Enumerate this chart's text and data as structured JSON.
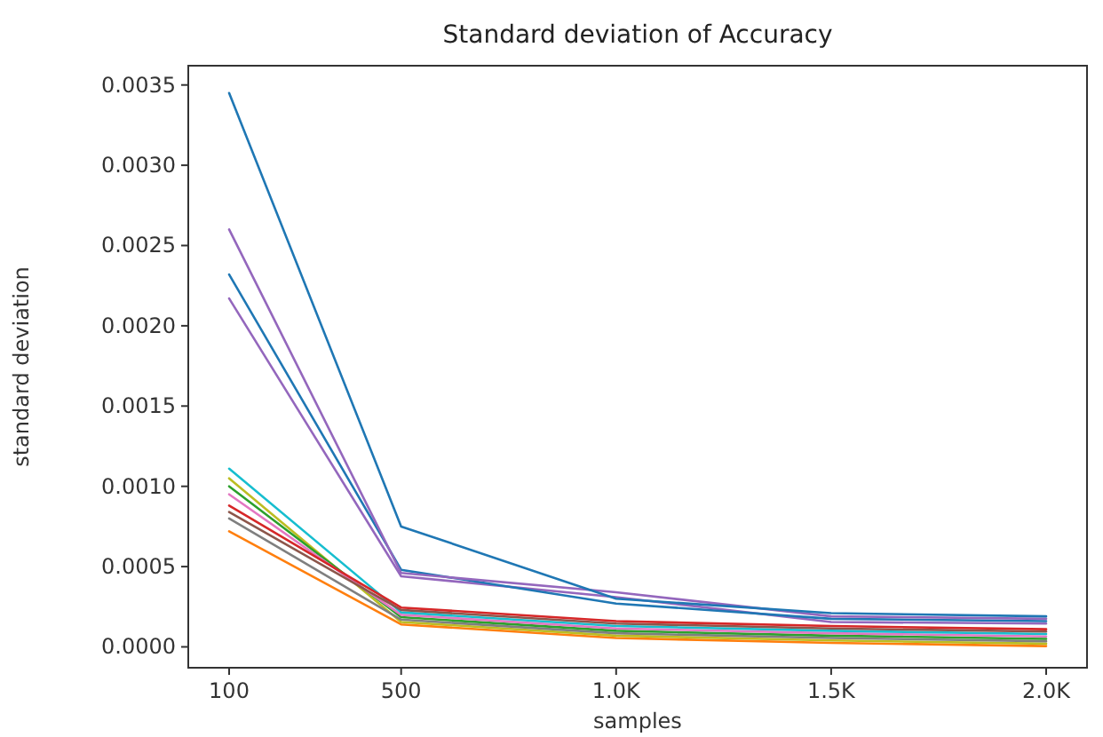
{
  "chart_data": {
    "type": "line",
    "title": "Standard deviation of Accuracy",
    "xlabel": "samples",
    "ylabel": "standard deviation",
    "x": [
      100,
      500,
      1000,
      1500,
      2000
    ],
    "xlim": [
      5,
      2095
    ],
    "xticks": [
      {
        "value": 100,
        "label": "100"
      },
      {
        "value": 500,
        "label": "500"
      },
      {
        "value": 1000,
        "label": "1.0K"
      },
      {
        "value": 1500,
        "label": "1.5K"
      },
      {
        "value": 2000,
        "label": "2.0K"
      }
    ],
    "ylim": [
      -0.00013,
      0.00362
    ],
    "yticks": [
      {
        "value": 0,
        "label": "0.0000"
      },
      {
        "value": 0.0005,
        "label": "0.0005"
      },
      {
        "value": 0.001,
        "label": "0.0010"
      },
      {
        "value": 0.0015,
        "label": "0.0015"
      },
      {
        "value": 0.002,
        "label": "0.0020"
      },
      {
        "value": 0.0025,
        "label": "0.0025"
      },
      {
        "value": 0.003,
        "label": "0.0030"
      },
      {
        "value": 0.0035,
        "label": "0.0035"
      }
    ],
    "grid": false,
    "marker": "none",
    "line_style": "solid",
    "series": [
      {
        "color": "#ff7f0e",
        "values": [
          0.00072,
          0.00014,
          5.5e-05,
          2.5e-05,
          5e-06
        ]
      },
      {
        "color": "#bcbd22",
        "values": [
          0.00105,
          0.000155,
          7e-05,
          4e-05,
          2e-05
        ]
      },
      {
        "color": "#7f7f7f",
        "values": [
          0.0008,
          0.00017,
          8.5e-05,
          5.5e-05,
          3.5e-05
        ]
      },
      {
        "color": "#2ca02c",
        "values": [
          0.001,
          0.000185,
          0.0001,
          7e-05,
          5e-05
        ]
      },
      {
        "color": "#e377c2",
        "values": [
          0.00095,
          0.0002,
          0.000115,
          8.5e-05,
          6.5e-05
        ]
      },
      {
        "color": "#17becf",
        "values": [
          0.00111,
          0.000215,
          0.00013,
          0.0001,
          8e-05
        ]
      },
      {
        "color": "#8c564b",
        "values": [
          0.00084,
          0.00023,
          0.000145,
          0.000115,
          9.5e-05
        ]
      },
      {
        "color": "#d62728",
        "values": [
          0.00088,
          0.000245,
          0.00016,
          0.00013,
          0.00011
        ]
      },
      {
        "color": "#9467bd",
        "values": [
          0.00217,
          0.00044,
          0.00031,
          0.000155,
          0.000145
        ]
      },
      {
        "color": "#1f77b4",
        "values": [
          0.00232,
          0.00048,
          0.00027,
          0.000175,
          0.00016
        ]
      },
      {
        "color": "#9467bd",
        "values": [
          0.0026,
          0.00046,
          0.00034,
          0.00019,
          0.000175
        ]
      },
      {
        "color": "#1f77b4",
        "values": [
          0.00345,
          0.00075,
          0.0003,
          0.00021,
          0.00019
        ]
      }
    ]
  }
}
